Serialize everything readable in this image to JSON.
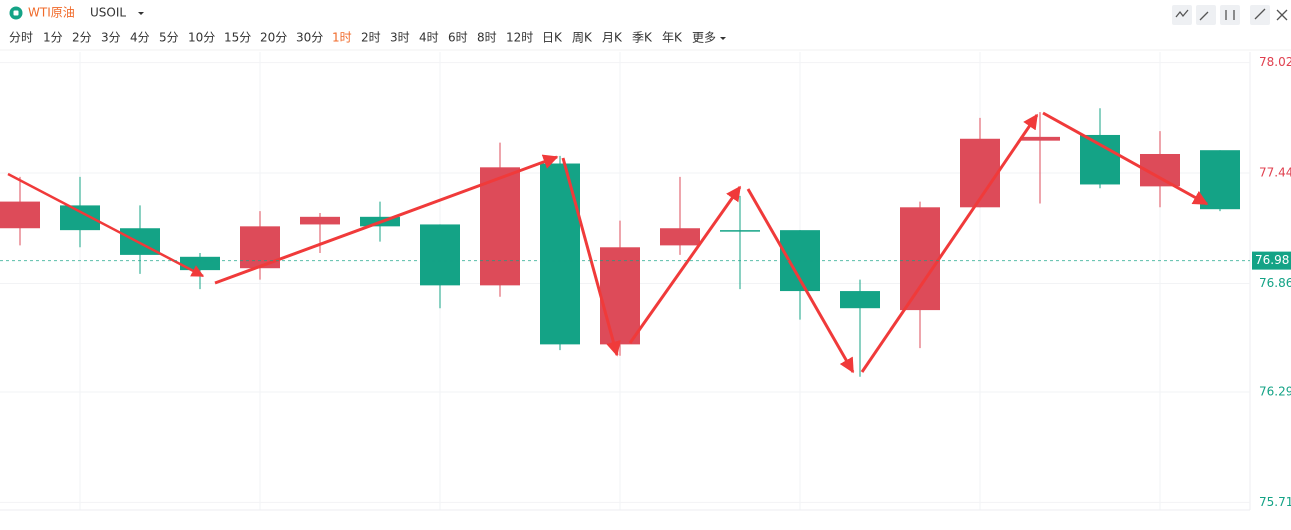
{
  "header": {
    "name": "WTI原油",
    "symbol": "USOIL"
  },
  "periods": {
    "items": [
      "分时",
      "1分",
      "2分",
      "3分",
      "4分",
      "5分",
      "10分",
      "15分",
      "20分",
      "30分",
      "1时",
      "2时",
      "3时",
      "4时",
      "6时",
      "8时",
      "12时",
      "日K",
      "周K",
      "月K",
      "季K",
      "年K"
    ],
    "active": 10,
    "more": "更多"
  },
  "chart_data": {
    "type": "candlestick",
    "open": [
      77.15,
      77.27,
      77.15,
      77.0,
      76.94,
      77.17,
      77.21,
      77.17,
      76.85,
      77.49,
      76.54,
      77.06,
      77.14,
      77.14,
      76.82,
      76.72,
      77.26,
      77.61,
      77.64,
      77.37,
      77.56
    ],
    "high": [
      77.42,
      77.42,
      77.27,
      77.02,
      77.24,
      77.23,
      77.29,
      77.17,
      77.6,
      77.53,
      77.19,
      77.42,
      77.32,
      77.14,
      76.88,
      77.29,
      77.73,
      77.76,
      77.78,
      77.66,
      77.56
    ],
    "low": [
      77.06,
      77.05,
      76.91,
      76.83,
      76.88,
      77.02,
      77.08,
      76.73,
      76.79,
      76.51,
      76.48,
      77.01,
      76.83,
      76.67,
      76.37,
      76.52,
      77.26,
      77.28,
      77.36,
      77.26,
      77.24
    ],
    "close": [
      77.29,
      77.14,
      77.01,
      76.93,
      77.16,
      77.21,
      77.16,
      76.85,
      77.47,
      76.54,
      77.05,
      77.15,
      77.14,
      76.82,
      76.73,
      77.26,
      77.62,
      77.63,
      77.38,
      77.54,
      77.25
    ],
    "up_color": "#dd4b59",
    "down_color": "#14a386",
    "ylim": [
      75.67,
      78.06
    ],
    "yticks": [
      78.02,
      77.44,
      76.86,
      76.29,
      75.71
    ],
    "current_price": 76.98,
    "grid": true
  }
}
